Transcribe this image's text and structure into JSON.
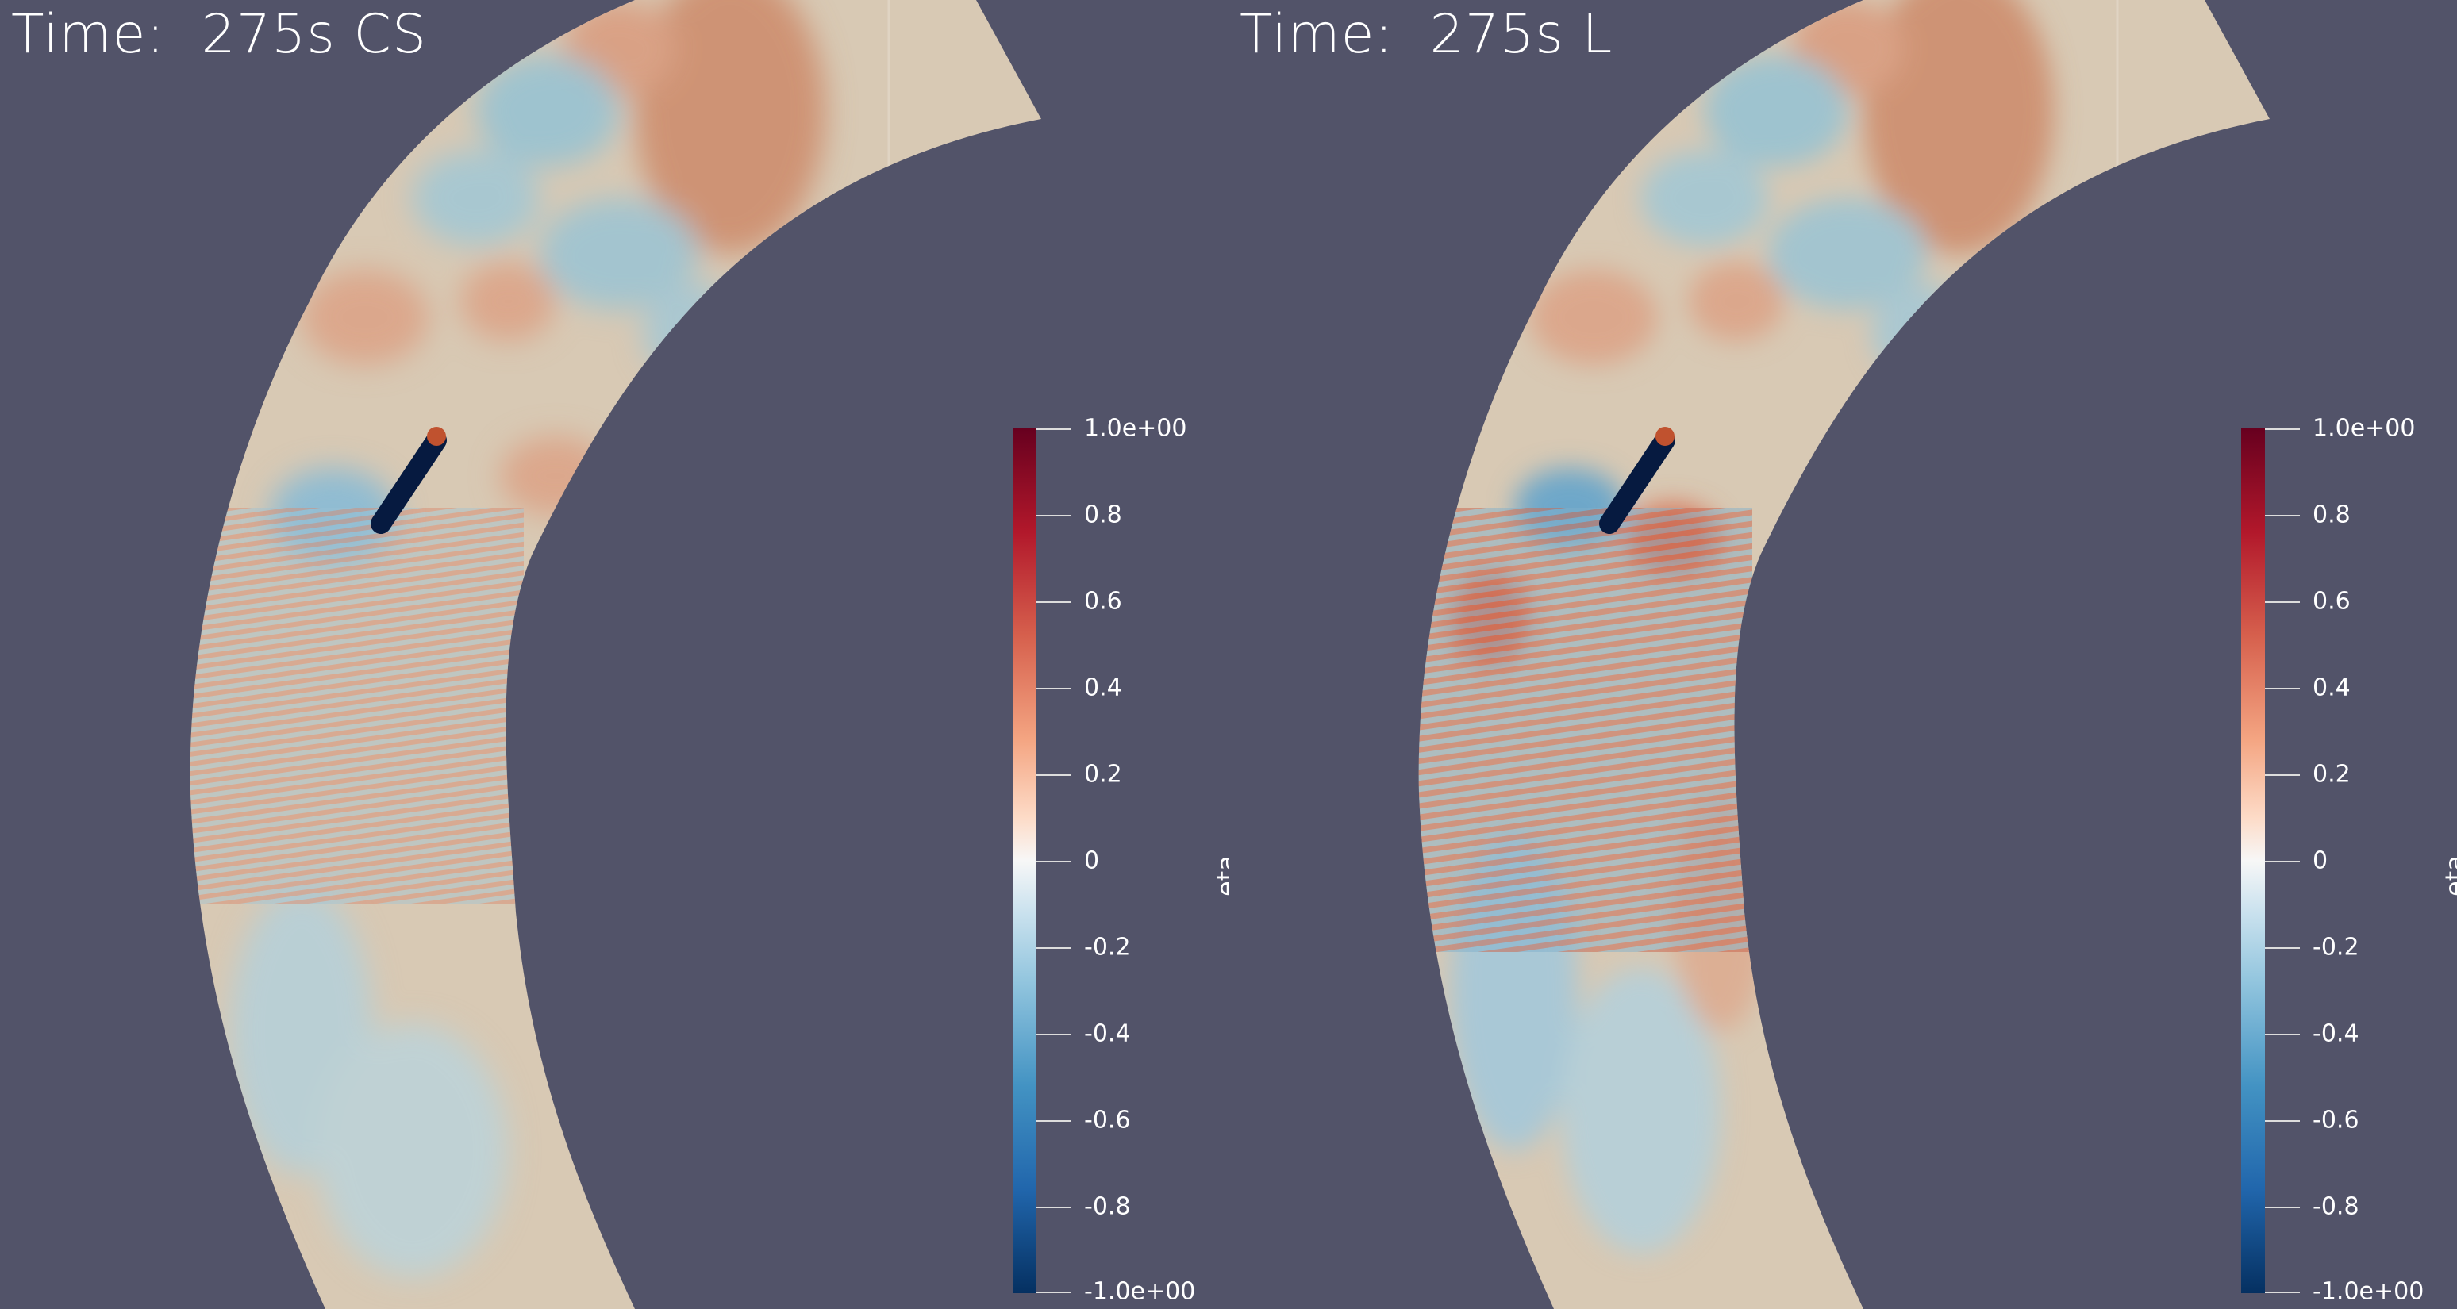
{
  "panels": [
    {
      "id": "left",
      "time_label": "Time:  275s CS"
    },
    {
      "id": "right",
      "time_label": "Time:  275s L"
    }
  ],
  "colorbar": {
    "title": "eta",
    "colormap": "RdBu (red-white-blue)",
    "range": [
      -1.0,
      1.0
    ],
    "ticks": [
      "1.0e+00",
      "0.8",
      "0.6",
      "0.4",
      "0.2",
      "0",
      "-0.2",
      "-0.4",
      "-0.6",
      "-0.8",
      "-1.0e+00"
    ]
  },
  "colors": {
    "background": "#525369",
    "channel_base": "#d8c9b4",
    "positive": "#d6604d",
    "negative": "#4393c3",
    "extreme_negative": "#053061"
  }
}
